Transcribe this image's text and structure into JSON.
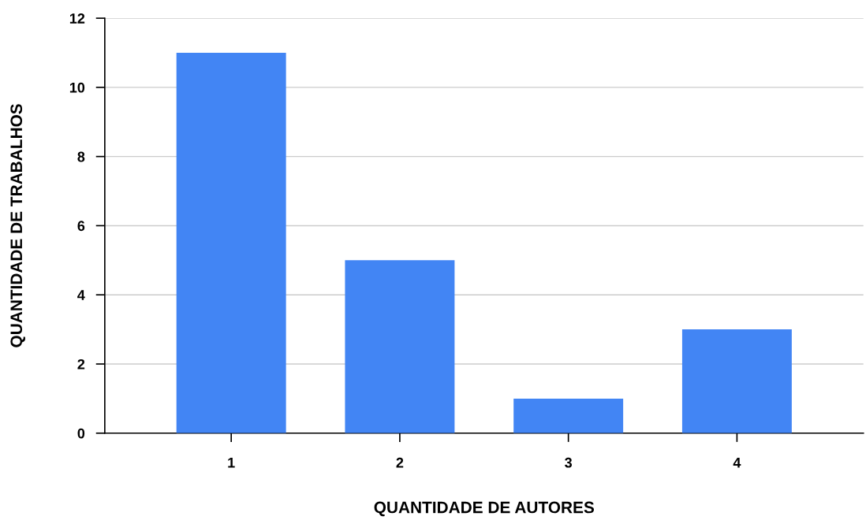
{
  "chart_data": {
    "type": "bar",
    "xlabel": "QUANTIDADE DE AUTORES",
    "ylabel": "QUANTIDADE DE TRABALHOS",
    "categories": [
      "1",
      "2",
      "3",
      "4"
    ],
    "values": [
      11,
      5,
      1,
      3
    ],
    "color": "#4285f4",
    "ylim": [
      0,
      12
    ],
    "yticks": [
      0,
      2,
      4,
      6,
      8,
      10,
      12
    ],
    "grid": "y"
  }
}
